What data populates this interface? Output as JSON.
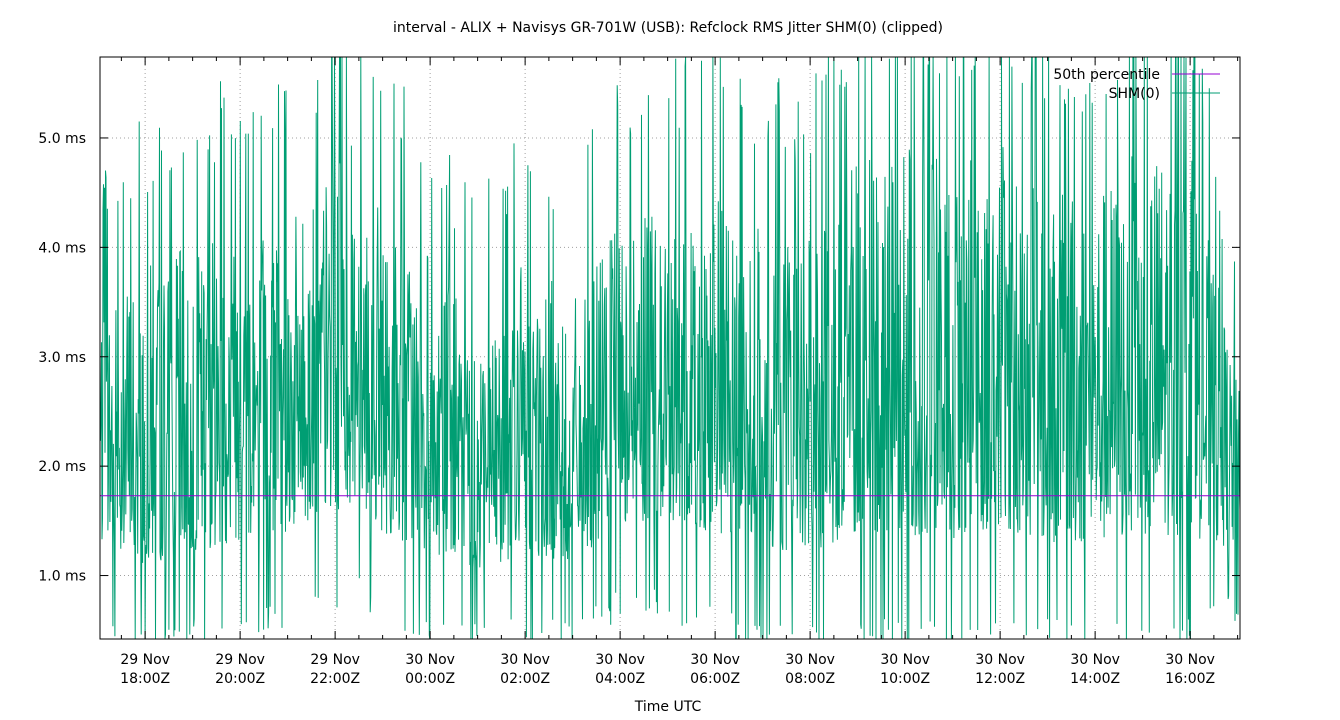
{
  "chart_data": {
    "type": "line",
    "title": "interval - ALIX + Navisys GR-701W (USB): Refclock RMS Jitter SHM(0) (clipped)",
    "xlabel": "Time UTC",
    "ylabel": "",
    "x_range_hours": [
      -6.95,
      17.05
    ],
    "ylim": [
      0.42,
      5.74
    ],
    "grid": true,
    "legend_position": "top-right",
    "y_ticks": [
      {
        "value": 1.0,
        "label": "1.0 ms"
      },
      {
        "value": 2.0,
        "label": "2.0 ms"
      },
      {
        "value": 3.0,
        "label": "3.0 ms"
      },
      {
        "value": 4.0,
        "label": "4.0 ms"
      },
      {
        "value": 5.0,
        "label": "5.0 ms"
      }
    ],
    "x_ticks": [
      {
        "hour": -6,
        "line1": "29 Nov",
        "line2": "18:00Z"
      },
      {
        "hour": -4,
        "line1": "29 Nov",
        "line2": "20:00Z"
      },
      {
        "hour": -2,
        "line1": "29 Nov",
        "line2": "22:00Z"
      },
      {
        "hour": 0,
        "line1": "30 Nov",
        "line2": "00:00Z"
      },
      {
        "hour": 2,
        "line1": "30 Nov",
        "line2": "02:00Z"
      },
      {
        "hour": 4,
        "line1": "30 Nov",
        "line2": "04:00Z"
      },
      {
        "hour": 6,
        "line1": "30 Nov",
        "line2": "06:00Z"
      },
      {
        "hour": 8,
        "line1": "30 Nov",
        "line2": "08:00Z"
      },
      {
        "hour": 10,
        "line1": "30 Nov",
        "line2": "10:00Z"
      },
      {
        "hour": 12,
        "line1": "30 Nov",
        "line2": "12:00Z"
      },
      {
        "hour": 14,
        "line1": "30 Nov",
        "line2": "14:00Z"
      },
      {
        "hour": 16,
        "line1": "30 Nov",
        "line2": "16:00Z"
      }
    ],
    "series": [
      {
        "name": "50th percentile",
        "color": "#9400d3",
        "constant_value": 1.73
      },
      {
        "name": "SHM(0)",
        "color": "#009e73",
        "envelope": {
          "x_hours": [
            -6.95,
            -6,
            -5,
            -4,
            -3,
            -2,
            -1.5,
            -1,
            0,
            1,
            2,
            3,
            4,
            5,
            6,
            7,
            8,
            9,
            10,
            11,
            12,
            13,
            14,
            15,
            16,
            17.05
          ],
          "low_ms": [
            0.8,
            0.5,
            0.6,
            0.7,
            0.8,
            0.9,
            1.0,
            0.8,
            0.6,
            0.6,
            0.6,
            0.6,
            0.9,
            0.9,
            0.7,
            0.6,
            0.6,
            0.6,
            0.6,
            0.6,
            0.7,
            0.6,
            0.6,
            0.6,
            0.6,
            0.9
          ],
          "high_ms": [
            4.0,
            4.5,
            4.6,
            4.9,
            4.8,
            5.5,
            5.7,
            4.8,
            4.6,
            3.6,
            4.6,
            4.0,
            4.8,
            5.0,
            5.2,
            4.8,
            4.7,
            5.7,
            5.7,
            5.5,
            5.7,
            5.2,
            5.2,
            5.7,
            5.7,
            3.0
          ]
        }
      }
    ]
  }
}
